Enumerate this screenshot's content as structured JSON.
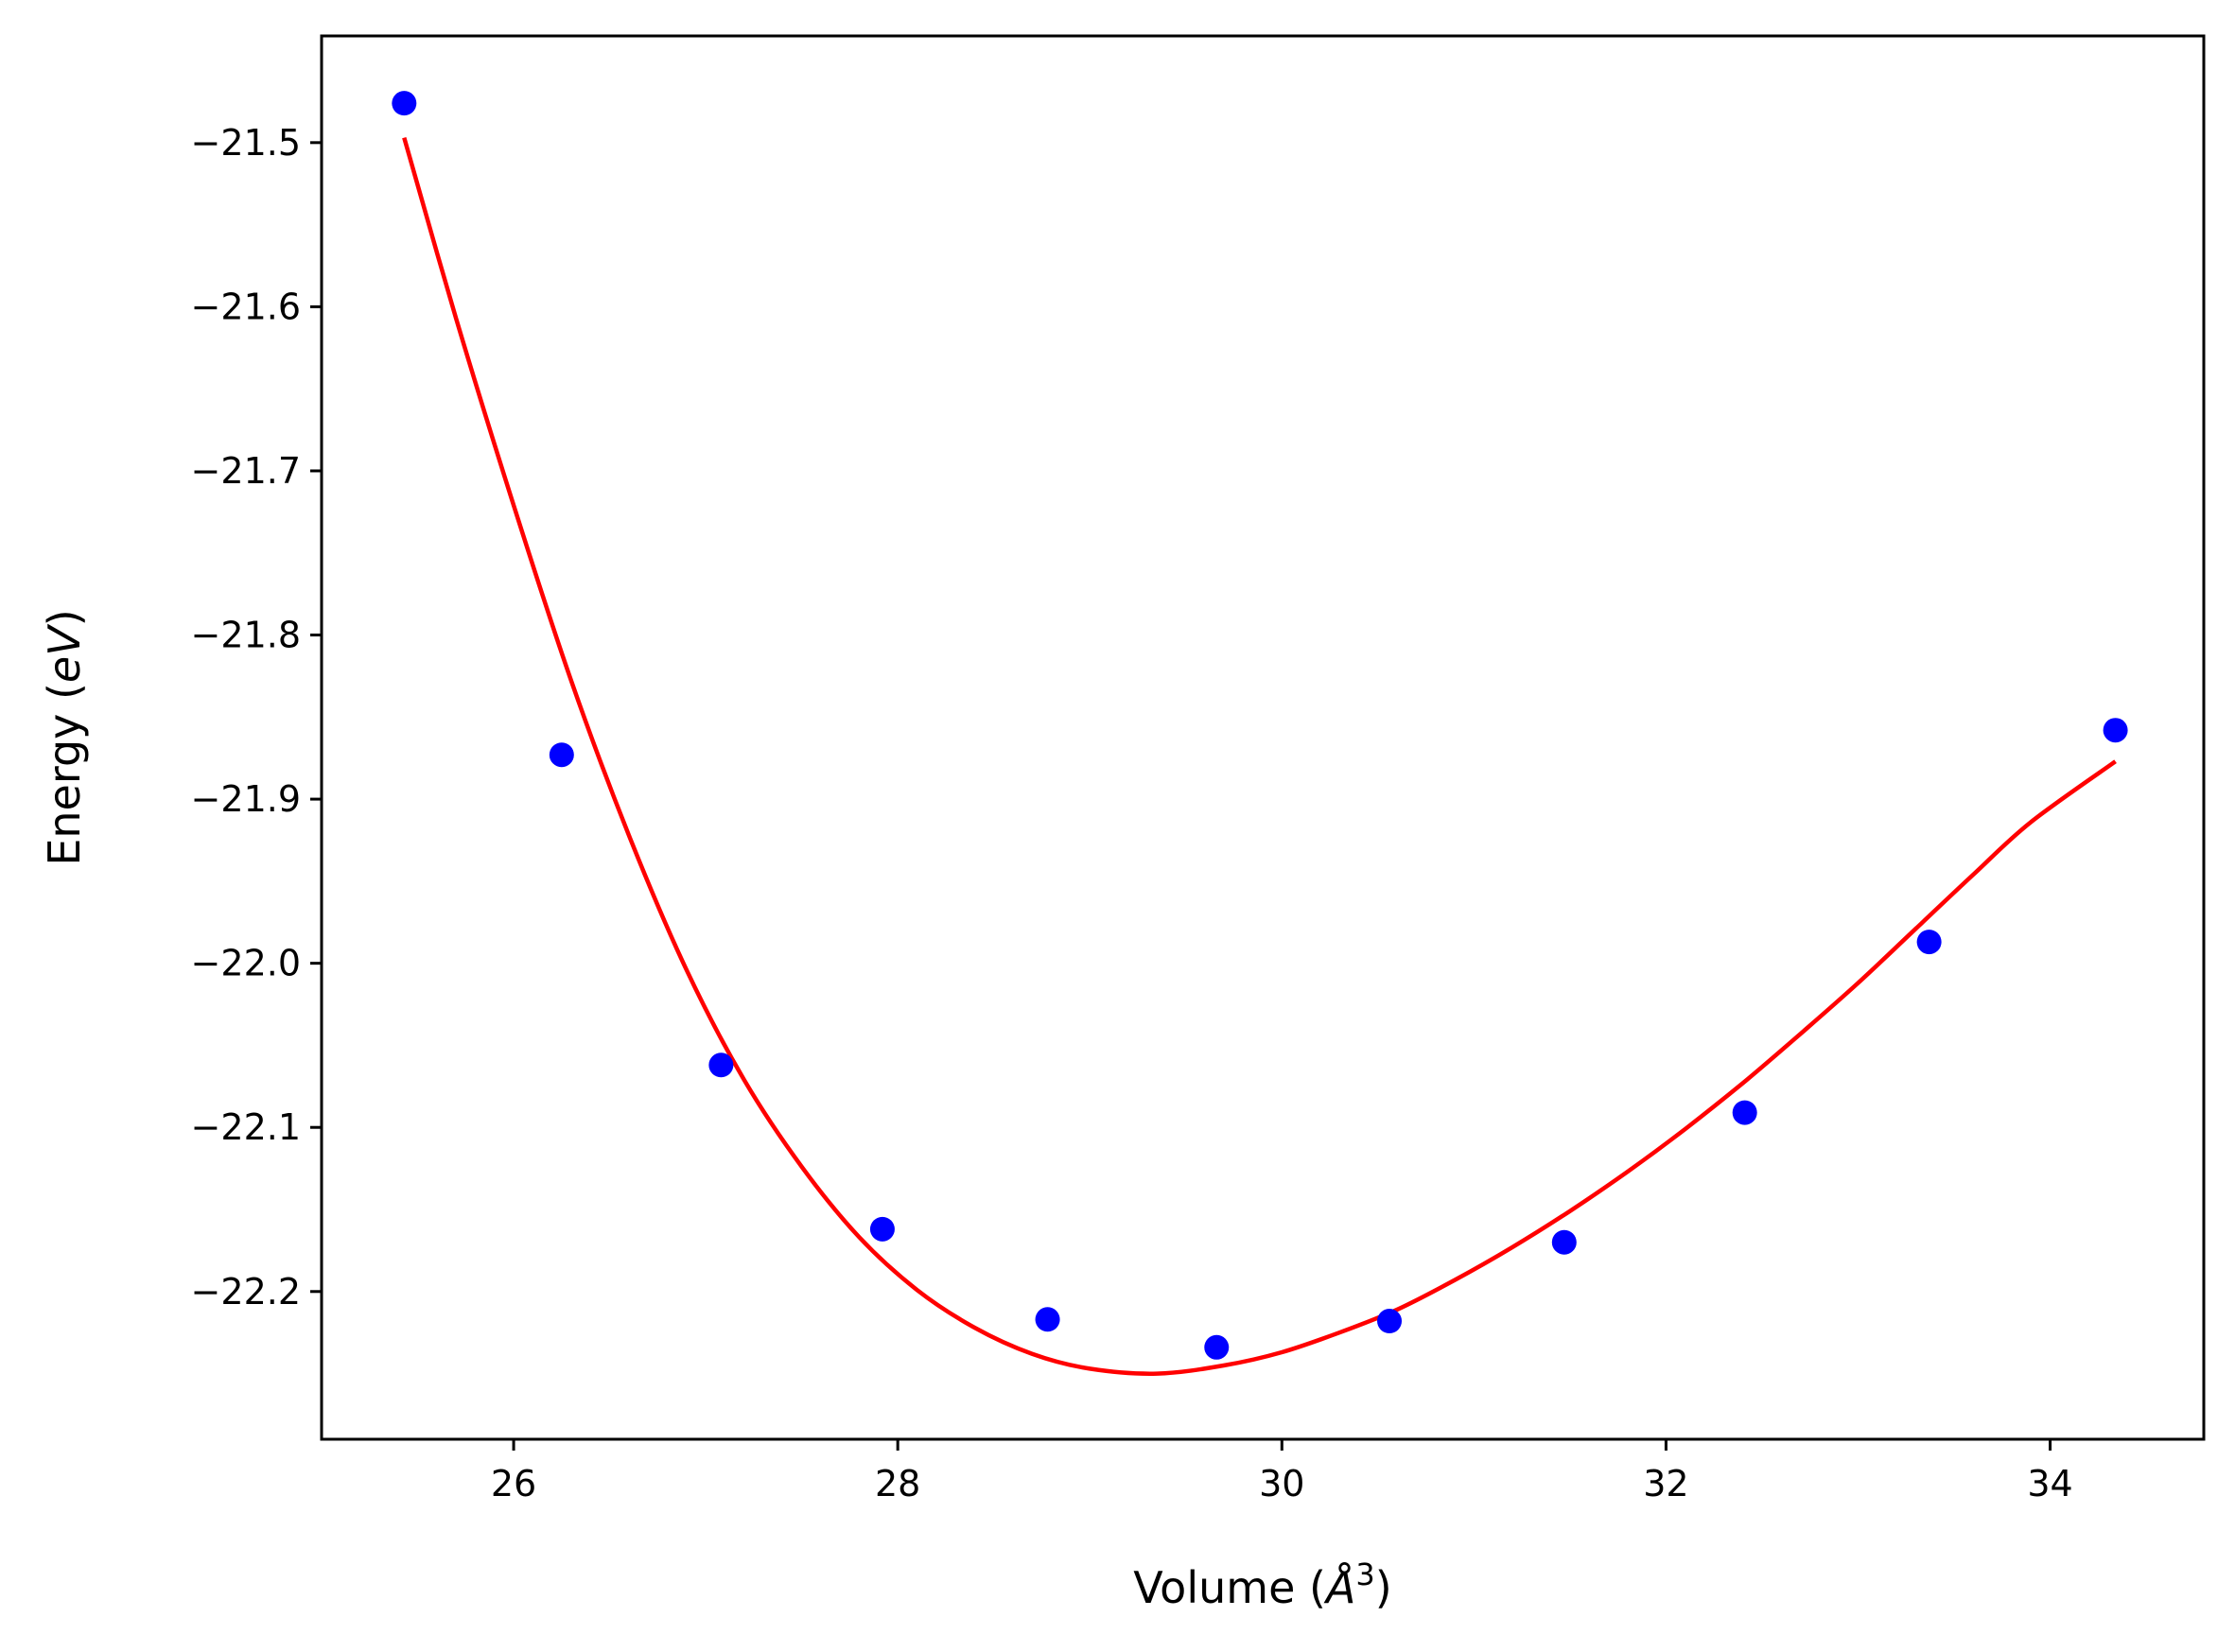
{
  "chart_data": {
    "type": "scatter",
    "title": "",
    "xlabel": {
      "prefix": "Volume (",
      "math": "Å",
      "sup": "3",
      "suffix": ")"
    },
    "ylabel": {
      "prefix": "Energy (",
      "math": "eV",
      "suffix": ")"
    },
    "xlim": [
      25.0,
      34.8
    ],
    "ylim": [
      -22.29,
      -21.435
    ],
    "x_ticks": [
      26,
      28,
      30,
      32,
      34
    ],
    "x_tick_labels": [
      "26",
      "28",
      "30",
      "32",
      "34"
    ],
    "y_ticks": [
      -21.5,
      -21.6,
      -21.7,
      -21.8,
      -21.9,
      -22.0,
      -22.1,
      -22.2
    ],
    "y_tick_labels": [
      "−21.5",
      "−21.6",
      "−21.7",
      "−21.8",
      "−21.9",
      "−22.0",
      "−22.1",
      "−22.2"
    ],
    "grid": false,
    "legend": "none",
    "colors": {
      "points": "#0000ff",
      "fit": "#ff0000",
      "axes": "#000000"
    },
    "series": [
      {
        "kind": "points",
        "x": [
          25.43,
          26.25,
          27.08,
          27.92,
          28.78,
          29.66,
          30.56,
          31.47,
          32.41,
          33.37,
          34.34
        ],
        "y": [
          -21.476,
          -21.873,
          -22.062,
          -22.162,
          -22.217,
          -22.234,
          -22.218,
          -22.17,
          -22.091,
          -21.987,
          -21.858
        ]
      },
      {
        "kind": "fit-curve",
        "x": [
          25.43,
          25.7,
          26.0,
          26.3,
          26.6,
          26.9,
          27.2,
          27.5,
          27.8,
          28.1,
          28.4,
          28.7,
          29.0,
          29.35,
          29.7,
          30.0,
          30.3,
          30.6,
          30.9,
          31.2,
          31.5,
          31.8,
          32.1,
          32.4,
          32.7,
          33.0,
          33.3,
          33.6,
          33.9,
          34.34
        ],
        "y": [
          -21.497,
          -21.607,
          -21.721,
          -21.828,
          -21.922,
          -22.004,
          -22.071,
          -22.124,
          -22.167,
          -22.199,
          -22.222,
          -22.238,
          -22.247,
          -22.25,
          -22.245,
          -22.237,
          -22.225,
          -22.211,
          -22.193,
          -22.173,
          -22.151,
          -22.127,
          -22.101,
          -22.073,
          -22.043,
          -22.012,
          -21.979,
          -21.946,
          -21.914,
          -21.877
        ]
      }
    ]
  }
}
